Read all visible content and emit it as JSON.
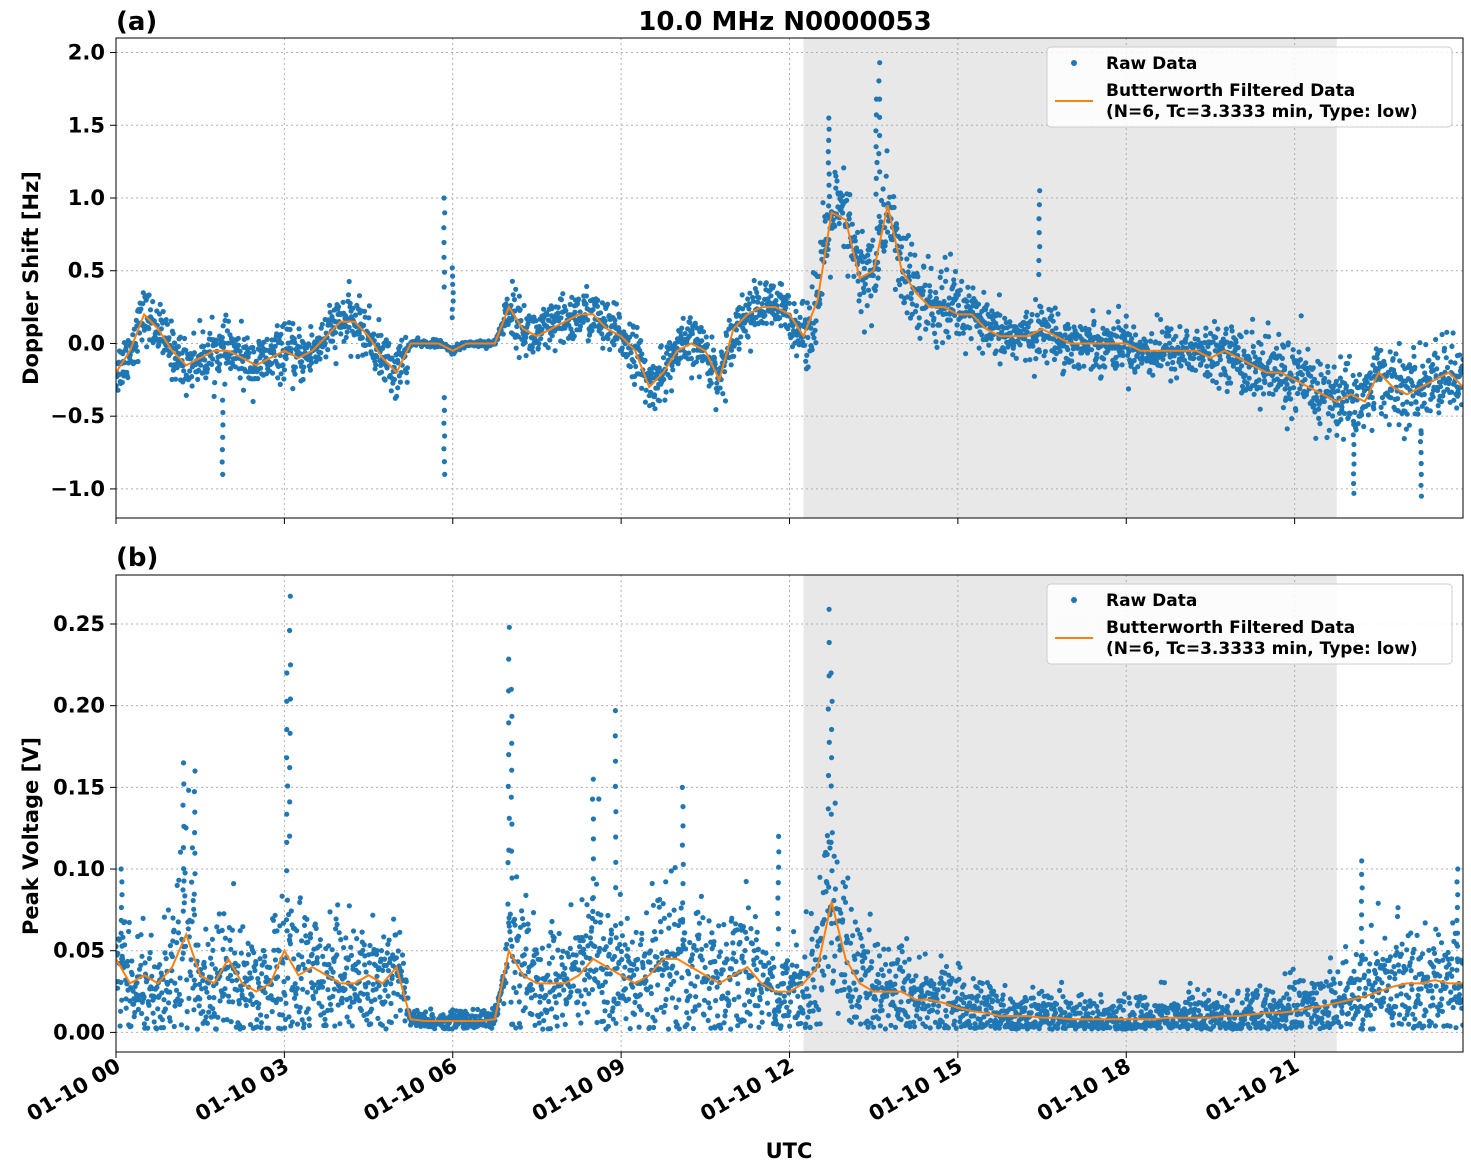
{
  "figure": {
    "title": "10.0 MHz N0000053",
    "xlabel": "UTC"
  },
  "colors": {
    "raw": "#1f77b4",
    "filtered": "#ff7f0e",
    "shade": "#e8e8e8",
    "grid": "#b0b0b0"
  },
  "chart_data": [
    {
      "type": "scatter",
      "panel_label": "(a)",
      "ylabel": "Doppler Shift [Hz]",
      "xlim_hours": [
        0,
        24
      ],
      "ylim": [
        -1.2,
        2.1
      ],
      "x_ticks": [
        {
          "hour": 0,
          "label": "01-10 00"
        },
        {
          "hour": 3,
          "label": "01-10 03"
        },
        {
          "hour": 6,
          "label": "01-10 06"
        },
        {
          "hour": 9,
          "label": "01-10 09"
        },
        {
          "hour": 12,
          "label": "01-10 12"
        },
        {
          "hour": 15,
          "label": "01-10 15"
        },
        {
          "hour": 18,
          "label": "01-10 18"
        },
        {
          "hour": 21,
          "label": "01-10 21"
        }
      ],
      "y_ticks": [
        {
          "value": 2.0,
          "label": "2.0"
        },
        {
          "value": 1.5,
          "label": "1.5"
        },
        {
          "value": 1.0,
          "label": "1.0"
        },
        {
          "value": 0.5,
          "label": "0.5"
        },
        {
          "value": 0.0,
          "label": "0.0"
        },
        {
          "value": -0.5,
          "label": "−0.5"
        },
        {
          "value": -1.0,
          "label": "−1.0"
        }
      ],
      "shaded_span_hours": [
        12.25,
        21.75
      ],
      "grid": true,
      "legend_placement": "upper right",
      "series": [
        {
          "name": "Raw Data",
          "style": "points"
        },
        {
          "name": "Butterworth Filtered Data\n(N=6, Tc=3.3333 min, Type: low)",
          "legend_line1": "Butterworth Filtered Data",
          "legend_line2": "(N=6, Tc=3.3333 min, Type: low)",
          "style": "line",
          "x_hours": [
            0,
            0.25,
            0.5,
            0.75,
            1,
            1.25,
            1.5,
            1.75,
            2,
            2.25,
            2.5,
            2.75,
            3,
            3.25,
            3.5,
            3.75,
            4,
            4.25,
            4.5,
            4.75,
            5,
            5.25,
            5.5,
            5.75,
            6,
            6.25,
            6.5,
            6.75,
            7,
            7.25,
            7.5,
            7.75,
            8,
            8.25,
            8.5,
            8.75,
            9,
            9.25,
            9.5,
            9.75,
            10,
            10.25,
            10.5,
            10.75,
            11,
            11.25,
            11.5,
            11.75,
            12,
            12.25,
            12.5,
            12.75,
            13,
            13.25,
            13.5,
            13.75,
            14,
            14.25,
            14.5,
            14.75,
            15,
            15.25,
            15.5,
            15.75,
            16,
            16.25,
            16.5,
            16.75,
            17,
            17.25,
            17.5,
            17.75,
            18,
            18.25,
            18.5,
            18.75,
            19,
            19.25,
            19.5,
            19.75,
            20,
            20.25,
            20.5,
            20.75,
            21,
            21.25,
            21.5,
            21.75,
            22,
            22.25,
            22.5,
            22.75,
            23,
            23.25,
            23.5,
            23.75,
            24
          ],
          "values": [
            -0.2,
            -0.05,
            0.2,
            0.1,
            -0.05,
            -0.15,
            -0.1,
            -0.05,
            -0.05,
            -0.1,
            -0.15,
            -0.1,
            -0.05,
            -0.1,
            -0.05,
            0.05,
            0.15,
            0.15,
            0.05,
            -0.1,
            -0.2,
            0.0,
            0.0,
            0.0,
            -0.05,
            0.0,
            0.0,
            0.0,
            0.25,
            0.1,
            0.05,
            0.1,
            0.15,
            0.2,
            0.2,
            0.1,
            0.05,
            -0.05,
            -0.3,
            -0.2,
            -0.05,
            0.0,
            -0.05,
            -0.25,
            0.1,
            0.2,
            0.25,
            0.25,
            0.2,
            0.05,
            0.3,
            0.9,
            0.85,
            0.45,
            0.5,
            0.95,
            0.5,
            0.35,
            0.25,
            0.25,
            0.2,
            0.2,
            0.1,
            0.05,
            0.05,
            0.05,
            0.1,
            0.05,
            0.0,
            0.0,
            0.0,
            0.0,
            0.0,
            -0.05,
            -0.05,
            -0.05,
            -0.05,
            -0.05,
            -0.1,
            -0.05,
            -0.1,
            -0.15,
            -0.2,
            -0.2,
            -0.25,
            -0.3,
            -0.35,
            -0.4,
            -0.35,
            -0.4,
            -0.2,
            -0.3,
            -0.35,
            -0.3,
            -0.25,
            -0.2,
            -0.3
          ]
        }
      ]
    },
    {
      "type": "scatter",
      "panel_label": "(b)",
      "ylabel": "Peak Voltage [V]",
      "xlim_hours": [
        0,
        24
      ],
      "ylim": [
        -0.012,
        0.28
      ],
      "x_ticks": [
        {
          "hour": 0,
          "label": "01-10 00"
        },
        {
          "hour": 3,
          "label": "01-10 03"
        },
        {
          "hour": 6,
          "label": "01-10 06"
        },
        {
          "hour": 9,
          "label": "01-10 09"
        },
        {
          "hour": 12,
          "label": "01-10 12"
        },
        {
          "hour": 15,
          "label": "01-10 15"
        },
        {
          "hour": 18,
          "label": "01-10 18"
        },
        {
          "hour": 21,
          "label": "01-10 21"
        }
      ],
      "y_ticks": [
        {
          "value": 0.25,
          "label": "0.25"
        },
        {
          "value": 0.2,
          "label": "0.20"
        },
        {
          "value": 0.15,
          "label": "0.15"
        },
        {
          "value": 0.1,
          "label": "0.10"
        },
        {
          "value": 0.05,
          "label": "0.05"
        },
        {
          "value": 0.0,
          "label": "0.00"
        }
      ],
      "shaded_span_hours": [
        12.25,
        21.75
      ],
      "grid": true,
      "legend_placement": "upper right",
      "series": [
        {
          "name": "Raw Data",
          "style": "points"
        },
        {
          "name": "Butterworth Filtered Data\n(N=6, Tc=3.3333 min, Type: low)",
          "legend_line1": "Butterworth Filtered Data",
          "legend_line2": "(N=6, Tc=3.3333 min, Type: low)",
          "style": "line",
          "x_hours": [
            0,
            0.25,
            0.5,
            0.75,
            1,
            1.25,
            1.5,
            1.75,
            2,
            2.25,
            2.5,
            2.75,
            3,
            3.25,
            3.5,
            3.75,
            4,
            4.25,
            4.5,
            4.75,
            5,
            5.25,
            5.5,
            5.75,
            6,
            6.25,
            6.5,
            6.75,
            7,
            7.25,
            7.5,
            7.75,
            8,
            8.25,
            8.5,
            8.75,
            9,
            9.25,
            9.5,
            9.75,
            10,
            10.25,
            10.5,
            10.75,
            11,
            11.25,
            11.5,
            11.75,
            12,
            12.25,
            12.5,
            12.75,
            13,
            13.25,
            13.5,
            13.75,
            14,
            14.25,
            14.5,
            14.75,
            15,
            15.25,
            15.5,
            15.75,
            16,
            16.25,
            16.5,
            16.75,
            17,
            17.25,
            17.5,
            17.75,
            18,
            18.25,
            18.5,
            18.75,
            19,
            19.25,
            19.5,
            19.75,
            20,
            20.25,
            20.5,
            20.75,
            21,
            21.25,
            21.5,
            21.75,
            22,
            22.25,
            22.5,
            22.75,
            23,
            23.25,
            23.5,
            23.75,
            24
          ],
          "values": [
            0.045,
            0.03,
            0.035,
            0.03,
            0.04,
            0.06,
            0.035,
            0.03,
            0.045,
            0.03,
            0.025,
            0.03,
            0.05,
            0.035,
            0.04,
            0.035,
            0.03,
            0.03,
            0.035,
            0.03,
            0.04,
            0.008,
            0.007,
            0.007,
            0.007,
            0.007,
            0.007,
            0.008,
            0.05,
            0.035,
            0.03,
            0.03,
            0.03,
            0.035,
            0.045,
            0.04,
            0.035,
            0.03,
            0.035,
            0.045,
            0.045,
            0.04,
            0.035,
            0.03,
            0.035,
            0.04,
            0.03,
            0.025,
            0.025,
            0.03,
            0.04,
            0.08,
            0.045,
            0.03,
            0.025,
            0.025,
            0.025,
            0.02,
            0.02,
            0.018,
            0.015,
            0.013,
            0.012,
            0.01,
            0.01,
            0.01,
            0.009,
            0.009,
            0.008,
            0.008,
            0.008,
            0.008,
            0.008,
            0.008,
            0.008,
            0.009,
            0.009,
            0.009,
            0.009,
            0.01,
            0.01,
            0.011,
            0.012,
            0.012,
            0.013,
            0.015,
            0.016,
            0.018,
            0.02,
            0.022,
            0.025,
            0.028,
            0.03,
            0.03,
            0.032,
            0.03,
            0.03
          ]
        }
      ]
    }
  ]
}
